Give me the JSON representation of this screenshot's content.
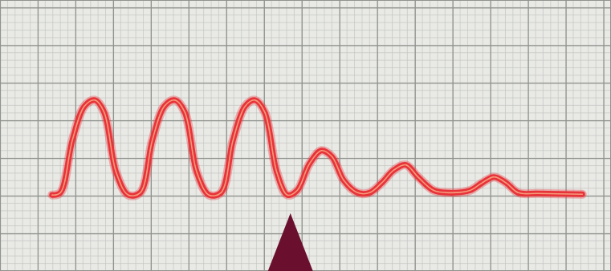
{
  "chart_data": {
    "type": "line",
    "x": [
      6.9,
      8.0,
      9.6,
      11.2,
      12.6,
      13.8,
      15.4,
      17.0,
      18.6,
      20.2,
      21.8,
      23.2,
      24.5,
      26.1,
      27.7,
      29.3,
      30.9,
      32.5,
      33.8,
      35.1,
      36.7,
      38.1,
      39.4,
      41.0,
      42.6,
      44.0,
      45.6,
      47.4,
      49.0,
      50.6,
      52.2,
      53.8,
      55.4,
      57.5,
      59.6,
      62.3,
      63.9,
      65.5,
      67.1,
      68.7,
      71.3,
      77.2
    ],
    "series": [
      {
        "color": "#e8333a",
        "values": [
          10.1,
          10.4,
          17.4,
          21.9,
          22.7,
          21.1,
          13.1,
          10.1,
          10.4,
          17.4,
          21.9,
          22.7,
          21.1,
          13.1,
          10.1,
          10.4,
          17.4,
          21.9,
          22.7,
          21.1,
          13.1,
          10.1,
          10.7,
          14.2,
          16.0,
          15.2,
          12.0,
          10.4,
          10.4,
          11.7,
          13.4,
          14.1,
          12.5,
          10.7,
          10.4,
          10.7,
          11.7,
          12.5,
          11.7,
          10.4,
          10.3,
          10.2
        ]
      }
    ],
    "xlim": [
      0,
      81
    ],
    "ylim": [
      0,
      36
    ],
    "xticks": [
      0,
      5,
      10,
      15,
      20,
      25,
      30,
      35,
      40,
      45,
      50,
      55,
      60,
      65,
      70,
      75,
      80
    ],
    "yticks": [
      0,
      5,
      10,
      15,
      20,
      25,
      30,
      35
    ],
    "grid": true,
    "tick_labels": false,
    "event_x": 38.5
  }
}
